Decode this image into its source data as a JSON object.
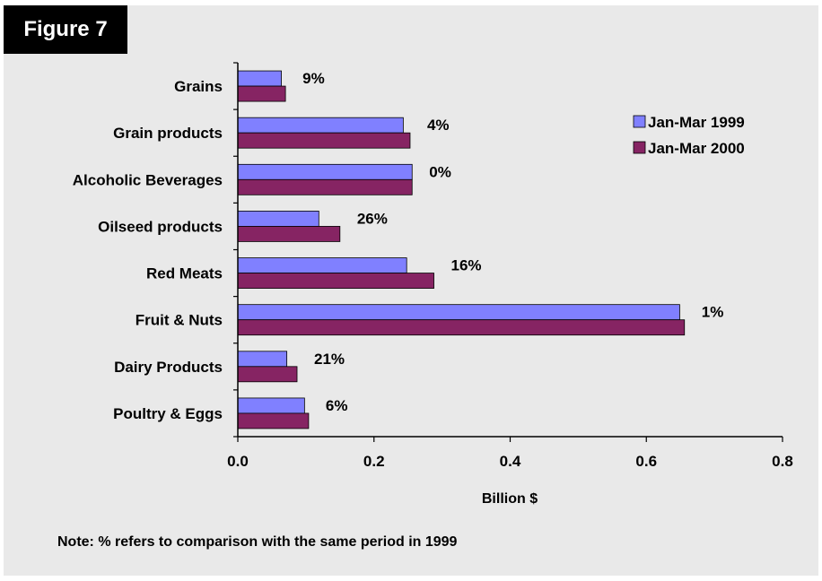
{
  "figure_label": "Figure 7",
  "note": "Note: % refers to comparison with the same period in 1999",
  "colors": {
    "series1": "#8080ff",
    "series2": "#862463",
    "panel": "#e9e9e9"
  },
  "chart_data": {
    "type": "bar",
    "orientation": "horizontal",
    "categories": [
      "Grains",
      "Grain products",
      "Alcoholic Beverages",
      "Oilseed products",
      "Red Meats",
      "Fruit & Nuts",
      "Dairy Products",
      "Poultry & Eggs"
    ],
    "series": [
      {
        "name": "Jan-Mar 1999",
        "values": [
          0.064,
          0.243,
          0.256,
          0.119,
          0.248,
          0.649,
          0.072,
          0.098
        ]
      },
      {
        "name": "Jan-Mar 2000",
        "values": [
          0.07,
          0.253,
          0.256,
          0.15,
          0.288,
          0.656,
          0.087,
          0.104
        ]
      }
    ],
    "change_labels": [
      "9%",
      "4%",
      "0%",
      "26%",
      "16%",
      "1%",
      "21%",
      "6%"
    ],
    "xlabel": "Billion $",
    "xlim": [
      0,
      0.8
    ],
    "xticks": [
      "0.0",
      "0.2",
      "0.4",
      "0.6",
      "0.8"
    ],
    "legend_position": "top-right",
    "grid": false
  }
}
